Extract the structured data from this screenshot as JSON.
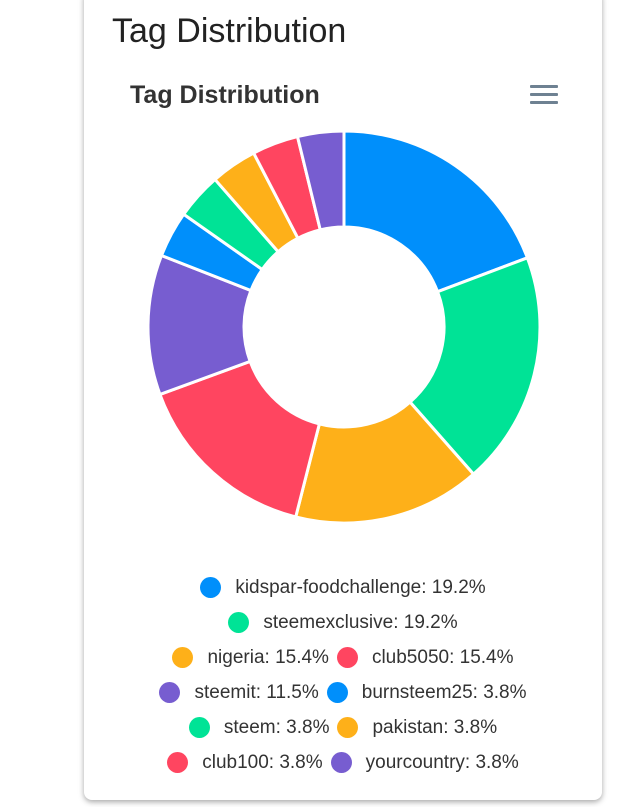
{
  "card_title": "Tag Distribution",
  "chart_data": {
    "type": "pie",
    "variant": "donut",
    "title": "Tag Distribution",
    "labels": [
      "kidspar-foodchallenge",
      "steemexclusive",
      "nigeria",
      "club5050",
      "steemit",
      "burnsteem25",
      "steem",
      "pakistan",
      "club100",
      "yourcountry"
    ],
    "values": [
      19.2,
      19.2,
      15.4,
      15.4,
      11.5,
      3.8,
      3.8,
      3.8,
      3.8,
      3.8
    ],
    "colors": [
      "#008FFB",
      "#00E396",
      "#FEB019",
      "#FF4560",
      "#775DD0",
      "#008FFB",
      "#00E396",
      "#FEB019",
      "#FF4560",
      "#775DD0"
    ],
    "legend_texts": [
      "kidspar-foodchallenge: 19.2%",
      "steemexclusive: 19.2%",
      "nigeria: 15.4%",
      "club5050: 15.4%",
      "steemit: 11.5%",
      "burnsteem25: 3.8%",
      "steem: 3.8%",
      "pakistan: 3.8%",
      "club100: 3.8%",
      "yourcountry: 3.8%"
    ],
    "legend_position": "bottom"
  },
  "icons": {
    "menu": "hamburger-menu-icon"
  }
}
